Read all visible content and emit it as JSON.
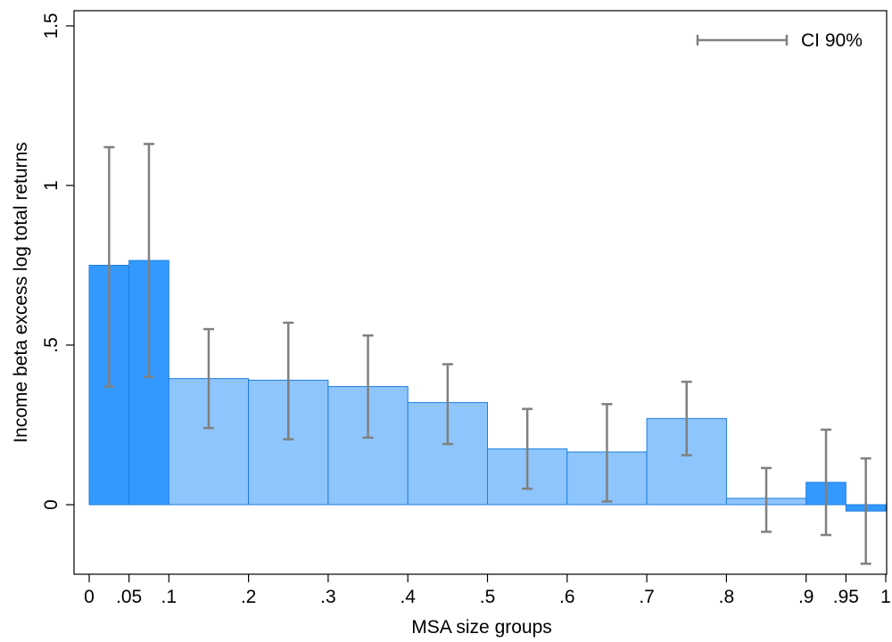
{
  "chart_data": {
    "type": "bar",
    "xlabel": "MSA size groups",
    "ylabel": "Income beta excess log total returns",
    "xlim": [
      0,
      1
    ],
    "ylim": [
      -0.22,
      1.55
    ],
    "x_ticks": [
      {
        "value": 0,
        "label": "0"
      },
      {
        "value": 0.05,
        "label": ".05"
      },
      {
        "value": 0.1,
        "label": ".1"
      },
      {
        "value": 0.2,
        "label": ".2"
      },
      {
        "value": 0.3,
        "label": ".3"
      },
      {
        "value": 0.4,
        "label": ".4"
      },
      {
        "value": 0.5,
        "label": ".5"
      },
      {
        "value": 0.6,
        "label": ".6"
      },
      {
        "value": 0.7,
        "label": ".7"
      },
      {
        "value": 0.8,
        "label": ".8"
      },
      {
        "value": 0.9,
        "label": ".9"
      },
      {
        "value": 0.95,
        "label": ".95"
      },
      {
        "value": 1,
        "label": "1"
      }
    ],
    "y_ticks": [
      {
        "value": 0,
        "label": "0"
      },
      {
        "value": 0.5,
        "label": ".5"
      },
      {
        "value": 1,
        "label": "1"
      },
      {
        "value": 1.5,
        "label": "1.5"
      }
    ],
    "grid": false,
    "legend": {
      "label": "CI 90%",
      "position": "top-right"
    },
    "colors": {
      "dark_bar": "#3399ff",
      "light_bar": "#8ec5fc",
      "bar_edge": "#1e7fe0",
      "ci": "#808080"
    },
    "bars": [
      {
        "x0": 0.0,
        "x1": 0.05,
        "value": 0.75,
        "ci_low": 0.37,
        "ci_high": 1.12,
        "shade": "dark"
      },
      {
        "x0": 0.05,
        "x1": 0.1,
        "value": 0.765,
        "ci_low": 0.4,
        "ci_high": 1.13,
        "shade": "dark"
      },
      {
        "x0": 0.1,
        "x1": 0.2,
        "value": 0.395,
        "ci_low": 0.24,
        "ci_high": 0.55,
        "shade": "light"
      },
      {
        "x0": 0.2,
        "x1": 0.3,
        "value": 0.39,
        "ci_low": 0.205,
        "ci_high": 0.57,
        "shade": "light"
      },
      {
        "x0": 0.3,
        "x1": 0.4,
        "value": 0.37,
        "ci_low": 0.21,
        "ci_high": 0.53,
        "shade": "light"
      },
      {
        "x0": 0.4,
        "x1": 0.5,
        "value": 0.32,
        "ci_low": 0.19,
        "ci_high": 0.44,
        "shade": "light"
      },
      {
        "x0": 0.5,
        "x1": 0.6,
        "value": 0.175,
        "ci_low": 0.05,
        "ci_high": 0.3,
        "shade": "light"
      },
      {
        "x0": 0.6,
        "x1": 0.7,
        "value": 0.165,
        "ci_low": 0.01,
        "ci_high": 0.315,
        "shade": "light"
      },
      {
        "x0": 0.7,
        "x1": 0.8,
        "value": 0.27,
        "ci_low": 0.155,
        "ci_high": 0.385,
        "shade": "light"
      },
      {
        "x0": 0.8,
        "x1": 0.9,
        "value": 0.02,
        "ci_low": -0.085,
        "ci_high": 0.115,
        "shade": "light"
      },
      {
        "x0": 0.9,
        "x1": 0.95,
        "value": 0.07,
        "ci_low": -0.095,
        "ci_high": 0.235,
        "shade": "dark"
      },
      {
        "x0": 0.95,
        "x1": 1.0,
        "value": -0.02,
        "ci_low": -0.185,
        "ci_high": 0.145,
        "shade": "dark"
      }
    ]
  }
}
